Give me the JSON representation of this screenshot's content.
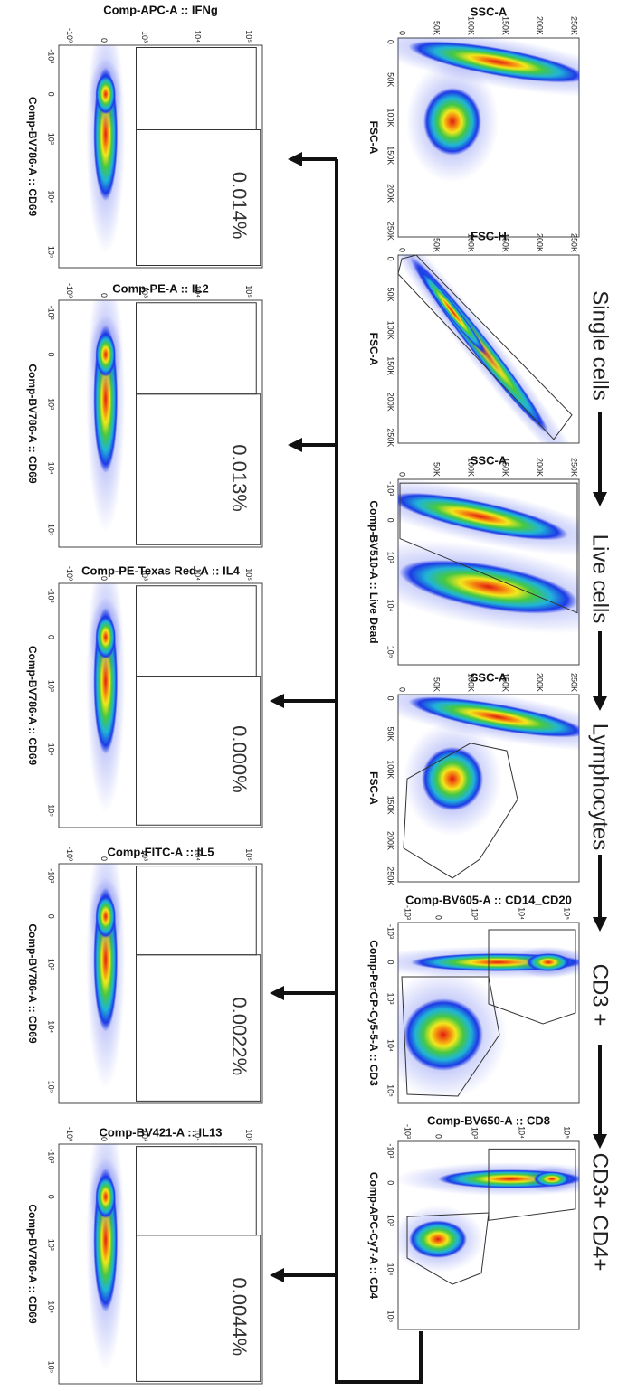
{
  "gates": [
    "Single cells",
    "Live cells",
    "Lymphocytes",
    "CD3 +",
    "CD3+ CD4+"
  ],
  "gating_plots": [
    {
      "x_label": "SSC-A",
      "y_label": "FSC-A",
      "x_ticks": [
        "0",
        "50K",
        "100K",
        "150K",
        "200K",
        "250K"
      ],
      "y_ticks": [
        "0",
        "50K",
        "100K",
        "150K",
        "200K",
        "250K"
      ]
    },
    {
      "x_label": "FSC-H",
      "y_label": "FSC-A",
      "x_ticks": [
        "0",
        "50K",
        "100K",
        "150K",
        "200K",
        "250K"
      ],
      "y_ticks": [
        "0",
        "50K",
        "100K",
        "150K",
        "200K",
        "250K"
      ]
    },
    {
      "x_label": "SSC-A",
      "y_label": "Comp-BV510-A :: Live Dead",
      "x_ticks": [
        "0",
        "50K",
        "100K",
        "150K",
        "200K",
        "250K"
      ],
      "y_ticks": [
        "-10³",
        "0",
        "10³",
        "10⁴",
        "10⁵"
      ]
    },
    {
      "x_label": "SSC-A",
      "y_label": "FSC-A",
      "x_ticks": [
        "0",
        "50K",
        "100K",
        "150K",
        "200K",
        "250K"
      ],
      "y_ticks": [
        "0",
        "50K",
        "100K",
        "150K",
        "200K",
        "250K"
      ]
    },
    {
      "x_label": "Comp-BV605-A :: CD14_CD20",
      "y_label": "Comp-PerCP-Cy5-5-A :: CD3",
      "x_ticks": [
        "-10³",
        "0",
        "10³",
        "10⁴",
        "10⁵"
      ],
      "y_ticks": [
        "-10³",
        "0",
        "10³",
        "10⁴",
        "10⁵"
      ]
    },
    {
      "x_label": "Comp-BV650-A :: CD8",
      "y_label": "Comp-APC-Cy7-A :: CD4",
      "x_ticks": [
        "-10³",
        "0",
        "10³",
        "10⁴",
        "10⁵"
      ],
      "y_ticks": [
        "-10³",
        "0",
        "10³",
        "10⁴",
        "10⁵"
      ]
    }
  ],
  "cytokine_plots": [
    {
      "title": "Comp-APC-A :: IFNg",
      "y_label": "Comp-BV786-A :: CD69",
      "percent": "0.014%",
      "x_ticks": [
        "-10³",
        "0",
        "10³",
        "10⁴",
        "10⁵"
      ],
      "y_ticks": [
        "-10³",
        "0",
        "10³",
        "10⁴",
        "10⁵"
      ]
    },
    {
      "title": "Comp-PE-A :: IL2",
      "y_label": "Comp-BV786-A :: CD69",
      "percent": "0.013%",
      "x_ticks": [
        "-10³",
        "0",
        "10³",
        "10⁴",
        "10⁵"
      ],
      "y_ticks": [
        "-10³",
        "0",
        "10³",
        "10⁴",
        "10⁵"
      ]
    },
    {
      "title": "Comp-PE-Texas Red-A :: IL4",
      "y_label": "Comp-BV786-A :: CD69",
      "percent": "0.000%",
      "x_ticks": [
        "-10³",
        "0",
        "10³",
        "10⁴",
        "10⁵"
      ],
      "y_ticks": [
        "-10³",
        "0",
        "10³",
        "10⁴",
        "10⁵"
      ]
    },
    {
      "title": "Comp-FITC-A :: IL5",
      "y_label": "Comp-BV786-A :: CD69",
      "percent": "0.0022%",
      "x_ticks": [
        "-10³",
        "0",
        "10³",
        "10⁴",
        "10⁵"
      ],
      "y_ticks": [
        "-10³",
        "0",
        "10³",
        "10⁴",
        "10⁵"
      ]
    },
    {
      "title": "Comp-BV421-A :: IL13",
      "y_label": "Comp-BV786-A :: CD69",
      "percent": "0.0044%",
      "x_ticks": [
        "-10³",
        "0",
        "10³",
        "10⁴",
        "10⁵"
      ],
      "y_ticks": [
        "-10³",
        "0",
        "10³",
        "10⁴",
        "10⁵"
      ]
    }
  ]
}
